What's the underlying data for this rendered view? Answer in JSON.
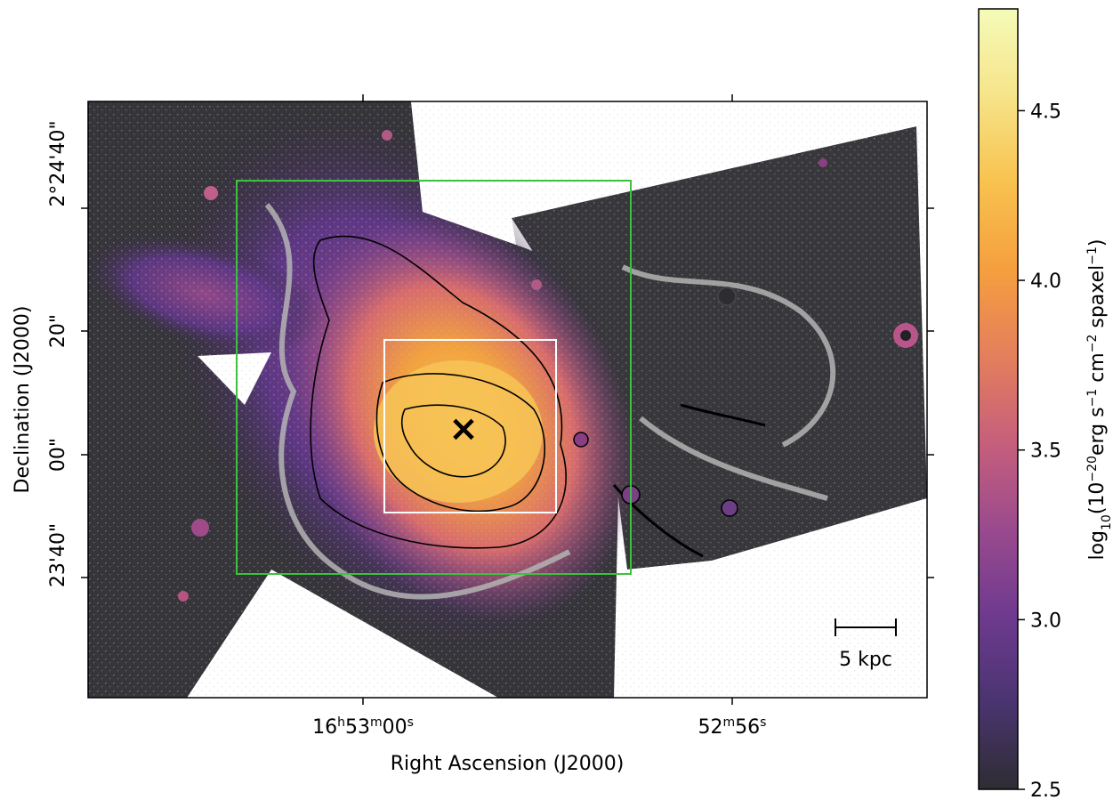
{
  "chart_data": {
    "type": "heatmap",
    "xlabel": "Right Ascension (J2000)",
    "ylabel": "Declination (J2000)",
    "x_ticks": [
      {
        "parts": [
          {
            "t": "16"
          },
          {
            "t": "h",
            "sup": true
          },
          {
            "t": "53"
          },
          {
            "t": "m",
            "sup": true
          },
          {
            "t": "00"
          },
          {
            "t": "s",
            "sup": true
          }
        ]
      },
      {
        "parts": [
          {
            "t": "52"
          },
          {
            "t": "m",
            "sup": true
          },
          {
            "t": "56"
          },
          {
            "t": "s",
            "sup": true
          }
        ]
      }
    ],
    "y_ticks": [
      "2°24'40\"",
      "20\"",
      "00\"",
      "23'40\""
    ],
    "colorbar": {
      "colormap": "inferno",
      "label_parts": [
        {
          "t": "log"
        },
        {
          "t": "10",
          "sub": true
        },
        {
          "t": "(10"
        },
        {
          "t": "−20",
          "sup": true
        },
        {
          "t": "erg s"
        },
        {
          "t": "−1",
          "sup": true
        },
        {
          "t": " cm"
        },
        {
          "t": "−2",
          "sup": true
        },
        {
          "t": "  spaxel"
        },
        {
          "t": "−1",
          "sup": true
        },
        {
          "t": ")"
        }
      ],
      "range": [
        2.5,
        4.8
      ],
      "ticks": [
        "2.5",
        "3.0",
        "3.5",
        "4.0",
        "4.5"
      ],
      "tick_values": [
        2.5,
        3.0,
        3.5,
        4.0,
        4.5
      ],
      "colors": [
        "#2e2d33",
        "#4a3470",
        "#6e3a8f",
        "#9a4a8e",
        "#c65f7c",
        "#e47f5c",
        "#f59f3f",
        "#f8c24e",
        "#f6e48a",
        "#f5fbb8"
      ]
    },
    "scalebar": {
      "label": "5 kpc"
    },
    "marker": {
      "symbol": "×"
    },
    "overlays": {
      "outer_box_color": "#3cc23c",
      "inner_box_color": "#ffffff",
      "contour_color": "#000000",
      "mask_color": "#b4b4b4"
    }
  }
}
